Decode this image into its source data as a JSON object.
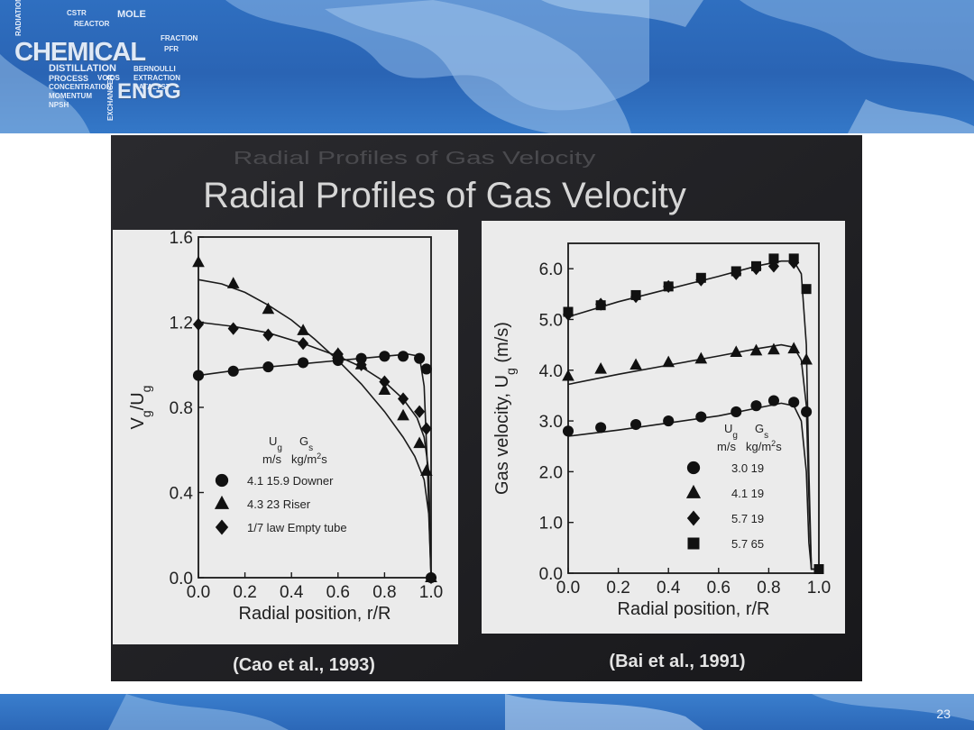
{
  "slide": {
    "logo": {
      "main": "CHEMICAL",
      "sub": "ENGG",
      "words": [
        "MOLE",
        "REACTOR",
        "CSTR",
        "DISTILLATION",
        "PROCESS",
        "CONCENTRATION",
        "MOMENTUM",
        "NPSH",
        "FRACTION",
        "PFR",
        "BERNOULLI",
        "EXTRACTION",
        "CATALYST",
        "VOIDS",
        "EXCHANGER",
        "RADIATION"
      ]
    },
    "title": "Radial Profiles of Gas Velocity",
    "title_shadow": "Radial Profiles of Gas Velocity",
    "page_number": "23",
    "colors": {
      "banner": "#2a64b4",
      "photo_background": "#1f1f23",
      "panel": "#ececec"
    }
  },
  "chart_data": [
    {
      "type": "scatter",
      "source": "(Cao et al., 1993)",
      "xlabel": "Radial position, r/R",
      "ylabel_main": "V",
      "ylabel_sub1": "g",
      "ylabel_mid": "/U",
      "ylabel_sub2": "g",
      "xlim": [
        0.0,
        1.0
      ],
      "ylim": [
        0.0,
        1.6
      ],
      "xticks": [
        "0.0",
        "0.2",
        "0.4",
        "0.6",
        "0.8",
        "1.0"
      ],
      "yticks": [
        "0.0",
        "0.4",
        "0.8",
        "1.2",
        "1.6"
      ],
      "xtick_values": [
        0,
        0.2,
        0.4,
        0.6,
        0.8,
        1.0
      ],
      "ytick_values": [
        0,
        0.4,
        0.8,
        1.2,
        1.6
      ],
      "legend": {
        "header_col1": "U",
        "header_col1_sub": "g",
        "header_col2": "G",
        "header_col2_sub": "s",
        "units_col1": "m/s",
        "units_col2": "kg/m",
        "units_col2_sup": "2",
        "units_col2_tail": "s",
        "entries": [
          {
            "marker": "circle",
            "label": "4.1  15.9 Downer"
          },
          {
            "marker": "triangle",
            "label": "4.3  23    Riser"
          },
          {
            "marker": "diamond",
            "label": "1/7  law  Empty tube"
          }
        ]
      },
      "series": [
        {
          "marker": "circle",
          "points": [
            [
              0.0,
              0.95
            ],
            [
              0.15,
              0.97
            ],
            [
              0.3,
              0.99
            ],
            [
              0.45,
              1.01
            ],
            [
              0.6,
              1.02
            ],
            [
              0.7,
              1.03
            ],
            [
              0.8,
              1.04
            ],
            [
              0.88,
              1.04
            ],
            [
              0.95,
              1.03
            ],
            [
              0.98,
              0.98
            ],
            [
              1.0,
              0.0
            ]
          ],
          "curve": [
            [
              0.0,
              0.95
            ],
            [
              0.2,
              0.98
            ],
            [
              0.4,
              1.0
            ],
            [
              0.6,
              1.02
            ],
            [
              0.8,
              1.04
            ],
            [
              0.9,
              1.05
            ],
            [
              0.95,
              1.04
            ],
            [
              0.97,
              0.9
            ],
            [
              0.985,
              0.5
            ],
            [
              1.0,
              0.0
            ]
          ]
        },
        {
          "marker": "triangle",
          "points": [
            [
              0.0,
              1.48
            ],
            [
              0.15,
              1.38
            ],
            [
              0.3,
              1.26
            ],
            [
              0.45,
              1.16
            ],
            [
              0.6,
              1.05
            ],
            [
              0.7,
              1.0
            ],
            [
              0.8,
              0.88
            ],
            [
              0.88,
              0.76
            ],
            [
              0.95,
              0.63
            ],
            [
              0.98,
              0.5
            ],
            [
              1.0,
              0.0
            ]
          ],
          "curve": [
            [
              0.0,
              1.4
            ],
            [
              0.1,
              1.38
            ],
            [
              0.2,
              1.34
            ],
            [
              0.3,
              1.28
            ],
            [
              0.4,
              1.21
            ],
            [
              0.5,
              1.12
            ],
            [
              0.6,
              1.02
            ],
            [
              0.7,
              0.91
            ],
            [
              0.8,
              0.78
            ],
            [
              0.88,
              0.66
            ],
            [
              0.93,
              0.57
            ],
            [
              0.97,
              0.46
            ],
            [
              0.99,
              0.3
            ],
            [
              1.0,
              0.0
            ]
          ]
        },
        {
          "marker": "diamond",
          "points": [
            [
              0.0,
              1.19
            ],
            [
              0.15,
              1.17
            ],
            [
              0.3,
              1.14
            ],
            [
              0.45,
              1.1
            ],
            [
              0.6,
              1.05
            ],
            [
              0.7,
              1.0
            ],
            [
              0.8,
              0.92
            ],
            [
              0.88,
              0.84
            ],
            [
              0.95,
              0.78
            ],
            [
              0.98,
              0.7
            ],
            [
              1.0,
              0.0
            ]
          ],
          "curve": [
            [
              0.0,
              1.2
            ],
            [
              0.15,
              1.18
            ],
            [
              0.3,
              1.15
            ],
            [
              0.45,
              1.1
            ],
            [
              0.6,
              1.04
            ],
            [
              0.7,
              0.99
            ],
            [
              0.8,
              0.92
            ],
            [
              0.88,
              0.84
            ],
            [
              0.94,
              0.75
            ],
            [
              0.97,
              0.66
            ],
            [
              0.99,
              0.5
            ],
            [
              1.0,
              0.0
            ]
          ]
        }
      ]
    },
    {
      "type": "scatter",
      "source": "(Bai et al., 1991)",
      "xlabel": "Radial position, r/R",
      "ylabel_main": "Gas velocity, U",
      "ylabel_sub": "g",
      "ylabel_tail": " (m/s)",
      "xlim": [
        0.0,
        1.0
      ],
      "ylim": [
        0.0,
        6.5
      ],
      "xticks": [
        "0.0",
        "0.2",
        "0.4",
        "0.6",
        "0.8",
        "1.0"
      ],
      "yticks": [
        "0.0",
        "1.0",
        "2.0",
        "3.0",
        "4.0",
        "5.0",
        "6.0"
      ],
      "xtick_values": [
        0,
        0.2,
        0.4,
        0.6,
        0.8,
        1.0
      ],
      "ytick_values": [
        0,
        1,
        2,
        3,
        4,
        5,
        6
      ],
      "legend": {
        "header_col1": "U",
        "header_col1_sub": "g",
        "header_col2": "G",
        "header_col2_sub": "s",
        "units_col1": "m/s",
        "units_col2": "kg/m",
        "units_col2_sup": "2",
        "units_col2_tail": "s",
        "entries": [
          {
            "marker": "circle",
            "label": "3.0  19"
          },
          {
            "marker": "triangle",
            "label": "4.1  19"
          },
          {
            "marker": "diamond",
            "label": "5.7  19"
          },
          {
            "marker": "square",
            "label": "5.7  65"
          }
        ]
      },
      "series": [
        {
          "marker": "circle",
          "points": [
            [
              0.0,
              2.8
            ],
            [
              0.13,
              2.87
            ],
            [
              0.27,
              2.93
            ],
            [
              0.4,
              3.0
            ],
            [
              0.53,
              3.08
            ],
            [
              0.67,
              3.18
            ],
            [
              0.75,
              3.3
            ],
            [
              0.82,
              3.4
            ],
            [
              0.9,
              3.37
            ],
            [
              0.95,
              3.18
            ]
          ],
          "curve": [
            [
              0.0,
              2.7
            ],
            [
              0.2,
              2.82
            ],
            [
              0.4,
              2.96
            ],
            [
              0.6,
              3.1
            ],
            [
              0.75,
              3.25
            ],
            [
              0.85,
              3.35
            ],
            [
              0.9,
              3.3
            ],
            [
              0.93,
              3.0
            ],
            [
              0.95,
              2.0
            ],
            [
              0.96,
              0.6
            ],
            [
              0.97,
              0.08
            ],
            [
              1.0,
              0.08
            ]
          ]
        },
        {
          "marker": "triangle",
          "points": [
            [
              0.0,
              3.88
            ],
            [
              0.13,
              4.02
            ],
            [
              0.27,
              4.1
            ],
            [
              0.4,
              4.15
            ],
            [
              0.53,
              4.22
            ],
            [
              0.67,
              4.35
            ],
            [
              0.75,
              4.38
            ],
            [
              0.82,
              4.4
            ],
            [
              0.9,
              4.42
            ],
            [
              0.95,
              4.2
            ]
          ],
          "curve": [
            [
              0.0,
              3.72
            ],
            [
              0.2,
              3.92
            ],
            [
              0.4,
              4.1
            ],
            [
              0.6,
              4.28
            ],
            [
              0.75,
              4.42
            ],
            [
              0.85,
              4.5
            ],
            [
              0.9,
              4.45
            ],
            [
              0.93,
              4.2
            ],
            [
              0.95,
              3.3
            ],
            [
              0.96,
              1.5
            ],
            [
              0.97,
              0.08
            ],
            [
              1.0,
              0.08
            ]
          ]
        },
        {
          "marker": "diamond",
          "points": [
            [
              0.0,
              5.1
            ],
            [
              0.13,
              5.3
            ],
            [
              0.27,
              5.45
            ],
            [
              0.4,
              5.65
            ],
            [
              0.53,
              5.78
            ],
            [
              0.67,
              5.9
            ],
            [
              0.75,
              6.0
            ],
            [
              0.82,
              6.05
            ],
            [
              0.9,
              6.12
            ]
          ],
          "curve": [
            [
              0.0,
              5.05
            ],
            [
              0.2,
              5.35
            ],
            [
              0.4,
              5.6
            ],
            [
              0.6,
              5.85
            ],
            [
              0.75,
              6.05
            ],
            [
              0.85,
              6.15
            ],
            [
              0.9,
              6.15
            ],
            [
              0.93,
              5.9
            ],
            [
              0.95,
              4.5
            ],
            [
              0.96,
              2.0
            ],
            [
              0.97,
              0.08
            ],
            [
              1.0,
              0.08
            ]
          ]
        },
        {
          "marker": "square",
          "points": [
            [
              0.0,
              5.15
            ],
            [
              0.13,
              5.28
            ],
            [
              0.27,
              5.48
            ],
            [
              0.4,
              5.65
            ],
            [
              0.53,
              5.82
            ],
            [
              0.67,
              5.95
            ],
            [
              0.75,
              6.05
            ],
            [
              0.82,
              6.2
            ],
            [
              0.9,
              6.2
            ],
            [
              0.95,
              5.6
            ],
            [
              1.0,
              0.08
            ]
          ],
          "curve": []
        }
      ]
    }
  ]
}
